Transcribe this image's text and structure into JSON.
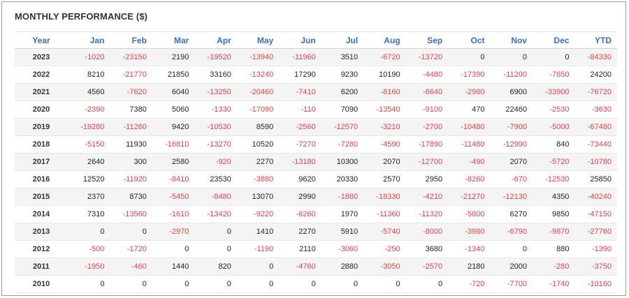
{
  "title": "MONTHLY PERFORMANCE ($)",
  "table": {
    "columns": [
      "Year",
      "Jan",
      "Feb",
      "Mar",
      "Apr",
      "May",
      "Jun",
      "Jul",
      "Aug",
      "Sep",
      "Oct",
      "Nov",
      "Dec",
      "YTD"
    ],
    "rows": [
      [
        "2023",
        "-1020",
        "-23150",
        "2190",
        "-19520",
        "-13940",
        "-11960",
        "3510",
        "-6720",
        "-13720",
        "0",
        "0",
        "0",
        "-84330"
      ],
      [
        "2022",
        "8210",
        "-21770",
        "21850",
        "33160",
        "-13240",
        "17290",
        "9230",
        "10190",
        "-4480",
        "-17390",
        "-11200",
        "-7650",
        "24200"
      ],
      [
        "2021",
        "4560",
        "-7620",
        "6040",
        "-13250",
        "-20460",
        "-7410",
        "6200",
        "-8160",
        "-6640",
        "-2980",
        "6900",
        "-33900",
        "-76720"
      ],
      [
        "2020",
        "-2390",
        "7380",
        "5060",
        "-1330",
        "-17090",
        "-110",
        "7090",
        "-13540",
        "-9100",
        "470",
        "22460",
        "-2530",
        "-3630"
      ],
      [
        "2019",
        "-19280",
        "-11260",
        "9420",
        "-10530",
        "8590",
        "-2560",
        "-12570",
        "-3210",
        "-2700",
        "-10480",
        "-7900",
        "-5000",
        "-67480"
      ],
      [
        "2018",
        "-5150",
        "11930",
        "-16810",
        "-13270",
        "10520",
        "-7270",
        "-7280",
        "-4590",
        "-17890",
        "-11480",
        "-12990",
        "840",
        "-73440"
      ],
      [
        "2017",
        "2640",
        "300",
        "2580",
        "-920",
        "2270",
        "-13180",
        "10300",
        "2070",
        "-12700",
        "-490",
        "2070",
        "-5720",
        "-10780"
      ],
      [
        "2016",
        "12520",
        "-11920",
        "-8410",
        "23530",
        "-3880",
        "9620",
        "20330",
        "2570",
        "2950",
        "-8260",
        "-670",
        "-12530",
        "25850"
      ],
      [
        "2015",
        "2370",
        "8730",
        "-5450",
        "-8480",
        "13070",
        "2990",
        "-1880",
        "-18330",
        "-4210",
        "-21270",
        "-12130",
        "4350",
        "-40240"
      ],
      [
        "2014",
        "7310",
        "-13560",
        "-1610",
        "-13420",
        "-9220",
        "-6260",
        "1970",
        "-11360",
        "-11320",
        "-5800",
        "6270",
        "9850",
        "-47150"
      ],
      [
        "2013",
        "0",
        "0",
        "-2970",
        "0",
        "1410",
        "2270",
        "5910",
        "-5740",
        "-8000",
        "-3980",
        "-6790",
        "-9870",
        "-27760"
      ],
      [
        "2012",
        "-500",
        "-1720",
        "0",
        "0",
        "-1190",
        "2110",
        "-3060",
        "-250",
        "3680",
        "-1340",
        "0",
        "880",
        "-1390"
      ],
      [
        "2011",
        "-1950",
        "-460",
        "1440",
        "820",
        "0",
        "-4760",
        "2880",
        "-3050",
        "-2570",
        "2180",
        "2000",
        "-280",
        "-3750"
      ],
      [
        "2010",
        "0",
        "0",
        "0",
        "0",
        "0",
        "0",
        "0",
        "0",
        "0",
        "-720",
        "-7700",
        "-1740",
        "-10160"
      ]
    ]
  },
  "colors": {
    "header_text": "#3a6fb5",
    "negative": "#e8424a",
    "positive": "#222222",
    "zebra": "#f4f4f4"
  }
}
